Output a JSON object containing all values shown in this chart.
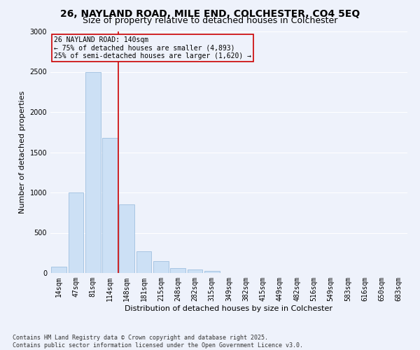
{
  "title": "26, NAYLAND ROAD, MILE END, COLCHESTER, CO4 5EQ",
  "subtitle": "Size of property relative to detached houses in Colchester",
  "xlabel": "Distribution of detached houses by size in Colchester",
  "ylabel": "Number of detached properties",
  "categories": [
    "14sqm",
    "47sqm",
    "81sqm",
    "114sqm",
    "148sqm",
    "181sqm",
    "215sqm",
    "248sqm",
    "282sqm",
    "315sqm",
    "349sqm",
    "382sqm",
    "415sqm",
    "449sqm",
    "482sqm",
    "516sqm",
    "549sqm",
    "583sqm",
    "616sqm",
    "650sqm",
    "683sqm"
  ],
  "values": [
    75,
    1000,
    2500,
    1680,
    850,
    270,
    150,
    60,
    45,
    30,
    0,
    0,
    0,
    0,
    0,
    0,
    0,
    0,
    0,
    0,
    0
  ],
  "bar_color": "#cce0f5",
  "bar_edgecolor": "#a0c0e0",
  "vline_pos": 3.5,
  "vline_color": "#cc0000",
  "annotation_title": "26 NAYLAND ROAD: 140sqm",
  "annotation_line1": "← 75% of detached houses are smaller (4,893)",
  "annotation_line2": "25% of semi-detached houses are larger (1,620) →",
  "annotation_box_color": "#cc0000",
  "ylim": [
    0,
    3000
  ],
  "yticks": [
    0,
    500,
    1000,
    1500,
    2000,
    2500,
    3000
  ],
  "footer_line1": "Contains HM Land Registry data © Crown copyright and database right 2025.",
  "footer_line2": "Contains public sector information licensed under the Open Government Licence v3.0.",
  "background_color": "#eef2fb",
  "grid_color": "#ffffff",
  "title_fontsize": 10,
  "subtitle_fontsize": 9,
  "label_fontsize": 8,
  "tick_fontsize": 7,
  "annotation_fontsize": 7,
  "footer_fontsize": 6
}
